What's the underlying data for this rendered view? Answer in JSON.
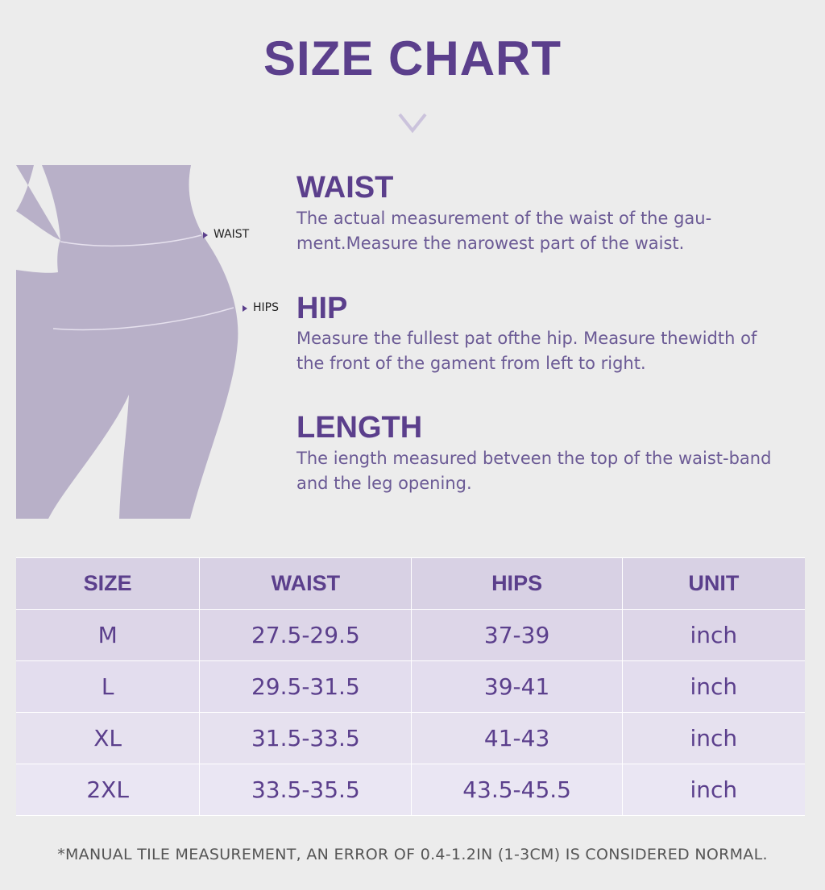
{
  "header": {
    "title": "SIZE CHART"
  },
  "figure": {
    "waist_label": "WAIST",
    "hips_label": "HIPS"
  },
  "sections": [
    {
      "heading": "WAIST",
      "lines": [
        "The actual measurement of the waist of the gau-",
        "ment.Measure the narowest part of the waist."
      ]
    },
    {
      "heading": "HIP",
      "lines": [
        "Measure the fullest pat ofthe hip. Measure thewidth of",
        "the front of the gament from left to right."
      ]
    },
    {
      "heading": "LENGTH",
      "lines": [
        "The iength measured betveen the top of the waist-band",
        "and the leg opening."
      ]
    }
  ],
  "table": {
    "header": [
      "SIZE",
      "WAIST",
      "HIPS",
      "UNIT"
    ],
    "rows": [
      [
        "M",
        "27.5-29.5",
        "37-39",
        "inch"
      ],
      [
        "L",
        "29.5-31.5",
        "39-41",
        "inch"
      ],
      [
        "XL",
        "31.5-33.5",
        "41-43",
        "inch"
      ],
      [
        "2XL",
        "33.5-35.5",
        "43.5-45.5",
        "inch"
      ]
    ]
  },
  "footnote": "*MANUAL TILE MEASUREMENT, AN ERROR OF 0.4-1.2IN (1-3CM) IS CONSIDERED NORMAL."
}
